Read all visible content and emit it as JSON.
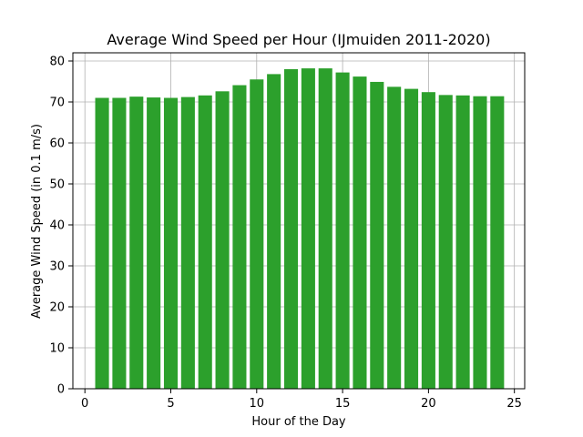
{
  "chart_data": {
    "type": "bar",
    "title": "Average Wind Speed per Hour (IJmuiden 2011-2020)",
    "xlabel": "Hour of the Day",
    "ylabel": "Average Wind Speed (in 0.1 m/s)",
    "x": [
      1,
      2,
      3,
      4,
      5,
      6,
      7,
      8,
      9,
      10,
      11,
      12,
      13,
      14,
      15,
      16,
      17,
      18,
      19,
      20,
      21,
      22,
      23,
      24
    ],
    "values": [
      71.0,
      71.0,
      71.3,
      71.1,
      71.0,
      71.2,
      71.6,
      72.6,
      74.1,
      75.5,
      76.8,
      78.0,
      78.2,
      78.2,
      77.2,
      76.2,
      74.9,
      73.7,
      73.2,
      72.4,
      71.7,
      71.6,
      71.4,
      71.4
    ],
    "xlim": [
      -0.7,
      25.6
    ],
    "ylim": [
      0,
      82
    ],
    "xticks": [
      0,
      5,
      10,
      15,
      20,
      25
    ],
    "yticks": [
      0,
      10,
      20,
      30,
      40,
      50,
      60,
      70,
      80
    ],
    "bar_width": 0.8,
    "grid": true,
    "bar_color": "#2ca02c",
    "grid_color": "#b0b0b0",
    "axis_color": "#000000"
  }
}
